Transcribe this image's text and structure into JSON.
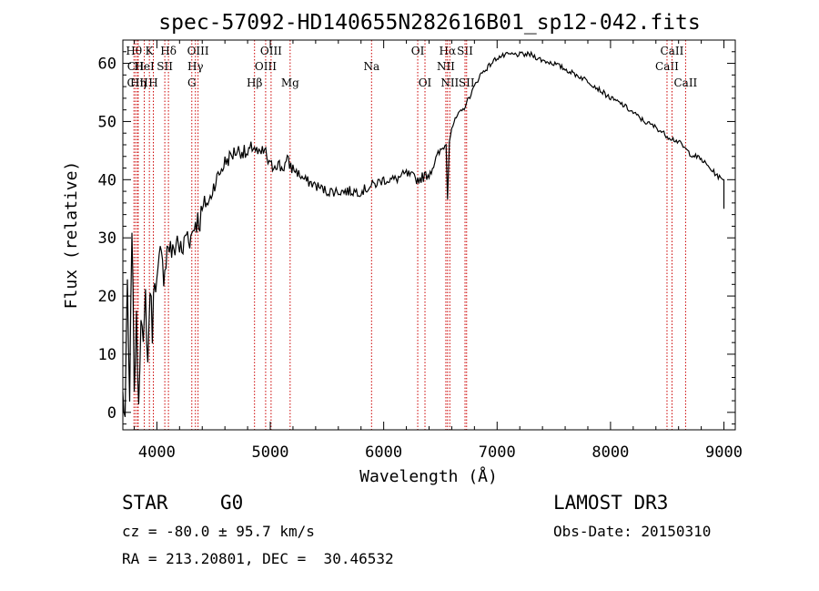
{
  "chart_data": {
    "type": "line",
    "title": "spec-57092-HD140655N282616B01_sp12-042.fits",
    "xlabel": "Wavelength (Å)",
    "ylabel": "Flux (relative)",
    "xlim": [
      3700,
      9100
    ],
    "ylim": [
      -3,
      64
    ],
    "xticks": [
      "4000",
      "5000",
      "6000",
      "7000",
      "8000",
      "9000"
    ],
    "yticks": [
      "0",
      "10",
      "20",
      "30",
      "40",
      "50",
      "60"
    ],
    "grid": false,
    "line_color": "#000000",
    "marker_color": "#cc0000",
    "spectrum": {
      "x": [
        3700,
        3720,
        3740,
        3760,
        3780,
        3800,
        3820,
        3840,
        3860,
        3880,
        3900,
        3920,
        3940,
        3960,
        3980,
        4000,
        4030,
        4060,
        4100,
        4140,
        4180,
        4220,
        4260,
        4300,
        4340,
        4380,
        4420,
        4460,
        4500,
        4550,
        4600,
        4650,
        4700,
        4750,
        4800,
        4850,
        4900,
        4950,
        5000,
        5050,
        5100,
        5150,
        5200,
        5300,
        5400,
        5500,
        5600,
        5700,
        5800,
        5900,
        6000,
        6100,
        6200,
        6300,
        6400,
        6500,
        6550,
        6563,
        6580,
        6600,
        6650,
        6700,
        6750,
        6800,
        6850,
        6900,
        7000,
        7100,
        7200,
        7300,
        7400,
        7500,
        7600,
        7700,
        7800,
        7900,
        8000,
        8100,
        8200,
        8300,
        8400,
        8500,
        8600,
        8700,
        8800,
        8900,
        8980,
        9000,
        9000
      ],
      "y": [
        3,
        -1,
        22,
        0,
        33,
        5,
        15,
        2,
        18,
        10,
        20,
        8,
        22,
        14,
        24,
        22,
        27,
        24,
        29,
        27,
        30,
        27,
        31,
        30,
        33,
        33,
        36,
        36,
        39,
        41,
        43,
        44,
        45,
        45,
        44,
        46,
        44,
        45,
        42,
        43,
        42,
        43,
        42,
        40,
        39,
        38,
        38,
        38,
        38,
        39,
        40,
        40,
        41,
        40,
        41,
        45,
        46,
        37,
        47,
        49,
        51,
        52,
        54,
        56,
        58,
        59,
        61,
        61.5,
        61.5,
        61.5,
        60.5,
        60,
        59,
        58,
        57,
        55.5,
        54,
        53,
        51.5,
        50,
        49,
        47.5,
        46.5,
        44.5,
        43.5,
        41.5,
        40,
        40,
        35
      ]
    },
    "lines": [
      {
        "name": "Hθ",
        "x": 3798,
        "row": 1
      },
      {
        "name": "CII",
        "x": 3813,
        "row": 2
      },
      {
        "name": "CIII",
        "x": 3830,
        "row": 3
      },
      {
        "name": "K",
        "x": 3934,
        "row": 1
      },
      {
        "name": "HeI",
        "x": 3889,
        "row": 2
      },
      {
        "name": "Hη",
        "x": 3835,
        "row": 3
      },
      {
        "name": "H",
        "x": 3969,
        "row": 3
      },
      {
        "name": "SII",
        "x": 4070,
        "row": 2
      },
      {
        "name": "Hδ",
        "x": 4102,
        "row": 1
      },
      {
        "name": "OIII",
        "x": 4363,
        "row": 1
      },
      {
        "name": "Hγ",
        "x": 4340,
        "row": 2
      },
      {
        "name": "G",
        "x": 4308,
        "row": 3
      },
      {
        "name": "Hβ",
        "x": 4861,
        "row": 3
      },
      {
        "name": "OIII",
        "x": 4959,
        "row": 2
      },
      {
        "name": "OIII",
        "x": 5007,
        "row": 1
      },
      {
        "name": "Mg",
        "x": 5175,
        "row": 3
      },
      {
        "name": "Na",
        "x": 5893,
        "row": 2
      },
      {
        "name": "OI",
        "x": 6300,
        "row": 1
      },
      {
        "name": "OI",
        "x": 6364,
        "row": 3
      },
      {
        "name": "Hα",
        "x": 6563,
        "row": 1
      },
      {
        "name": "NII",
        "x": 6548,
        "row": 2
      },
      {
        "name": "NII",
        "x": 6583,
        "row": 3
      },
      {
        "name": "SII",
        "x": 6717,
        "row": 1
      },
      {
        "name": "SII",
        "x": 6731,
        "row": 3
      },
      {
        "name": "CaII",
        "x": 8498,
        "row": 2
      },
      {
        "name": "CaII",
        "x": 8542,
        "row": 1
      },
      {
        "name": "CaII",
        "x": 8662,
        "row": 3
      }
    ]
  },
  "info": {
    "object_class": "STAR",
    "subclass": "G0",
    "survey": "LAMOST DR3",
    "cz": "cz = -80.0 ± 95.7 km/s",
    "obs_date": "Obs-Date: 20150310",
    "coords": "RA = 213.20801, DEC =  30.46532"
  }
}
